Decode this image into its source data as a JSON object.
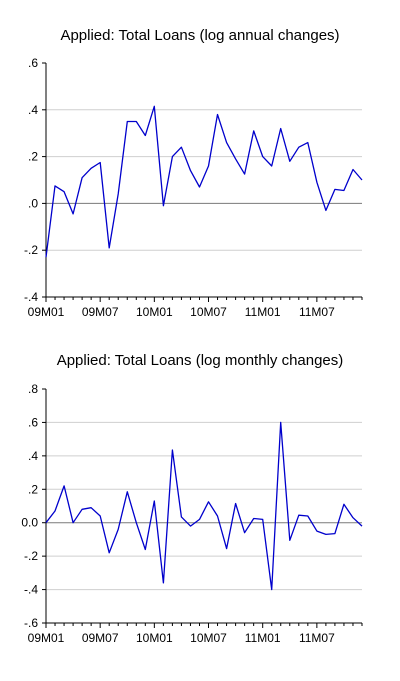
{
  "chart_data": [
    {
      "type": "line",
      "title": "Applied: Total Loans (log annual changes)",
      "x_tick_labels": [
        "09M01",
        "09M07",
        "10M01",
        "10M07",
        "11M01",
        "11M07"
      ],
      "y_tick_labels": [
        ".6",
        ".4",
        ".2",
        ".0",
        "-.2",
        "-.4"
      ],
      "ylim": [
        -0.4,
        0.6
      ],
      "y_ticks": [
        0.6,
        0.4,
        0.2,
        0.0,
        -0.2,
        -0.4
      ],
      "grid": true,
      "line_color": "#0000cc",
      "series": [
        {
          "x": [
            "09M01",
            "09M02",
            "09M03",
            "09M04",
            "09M05",
            "09M06",
            "09M07",
            "09M08",
            "09M09",
            "09M10",
            "09M11",
            "09M12",
            "10M01",
            "10M02",
            "10M03",
            "10M04",
            "10M05",
            "10M06",
            "10M07",
            "10M08",
            "10M09",
            "10M10",
            "10M11",
            "10M12",
            "11M01",
            "11M02",
            "11M03",
            "11M04",
            "11M05",
            "11M06",
            "11M07",
            "11M08",
            "11M09",
            "11M10",
            "11M11",
            "11M12"
          ],
          "values": [
            -0.23,
            0.075,
            0.05,
            -0.045,
            0.11,
            0.15,
            0.175,
            -0.19,
            0.04,
            0.35,
            0.35,
            0.29,
            0.415,
            -0.01,
            0.2,
            0.24,
            0.14,
            0.07,
            0.16,
            0.38,
            0.26,
            0.19,
            0.125,
            0.31,
            0.2,
            0.16,
            0.32,
            0.18,
            0.24,
            0.26,
            0.09,
            -0.03,
            0.06,
            0.055,
            0.145,
            0.1
          ]
        }
      ]
    },
    {
      "type": "line",
      "title": "Applied: Total Loans (log monthly changes)",
      "x_tick_labels": [
        "09M01",
        "09M07",
        "10M01",
        "10M07",
        "11M01",
        "11M07"
      ],
      "y_tick_labels": [
        ".8",
        ".6",
        ".4",
        ".2",
        "0.0",
        "-.2",
        "-.4",
        "-.6"
      ],
      "ylim": [
        -0.6,
        0.8
      ],
      "y_ticks": [
        0.8,
        0.6,
        0.4,
        0.2,
        0.0,
        -0.2,
        -0.4,
        -0.6
      ],
      "grid": true,
      "line_color": "#0000cc",
      "series": [
        {
          "x": [
            "09M01",
            "09M02",
            "09M03",
            "09M04",
            "09M05",
            "09M06",
            "09M07",
            "09M08",
            "09M09",
            "09M10",
            "09M11",
            "09M12",
            "10M01",
            "10M02",
            "10M03",
            "10M04",
            "10M05",
            "10M06",
            "10M07",
            "10M08",
            "10M09",
            "10M10",
            "10M11",
            "10M12",
            "11M01",
            "11M02",
            "11M03",
            "11M04",
            "11M05",
            "11M06",
            "11M07",
            "11M08",
            "11M09",
            "11M10",
            "11M11",
            "11M12"
          ],
          "values": [
            0.0,
            0.07,
            0.22,
            0.0,
            0.08,
            0.09,
            0.04,
            -0.18,
            -0.04,
            0.185,
            0.0,
            -0.16,
            0.13,
            -0.36,
            0.435,
            0.035,
            -0.02,
            0.02,
            0.125,
            0.04,
            -0.155,
            0.115,
            -0.06,
            0.025,
            0.02,
            -0.4,
            0.6,
            -0.105,
            0.045,
            0.04,
            -0.05,
            -0.07,
            -0.065,
            0.11,
            0.03,
            -0.02
          ]
        }
      ]
    }
  ]
}
